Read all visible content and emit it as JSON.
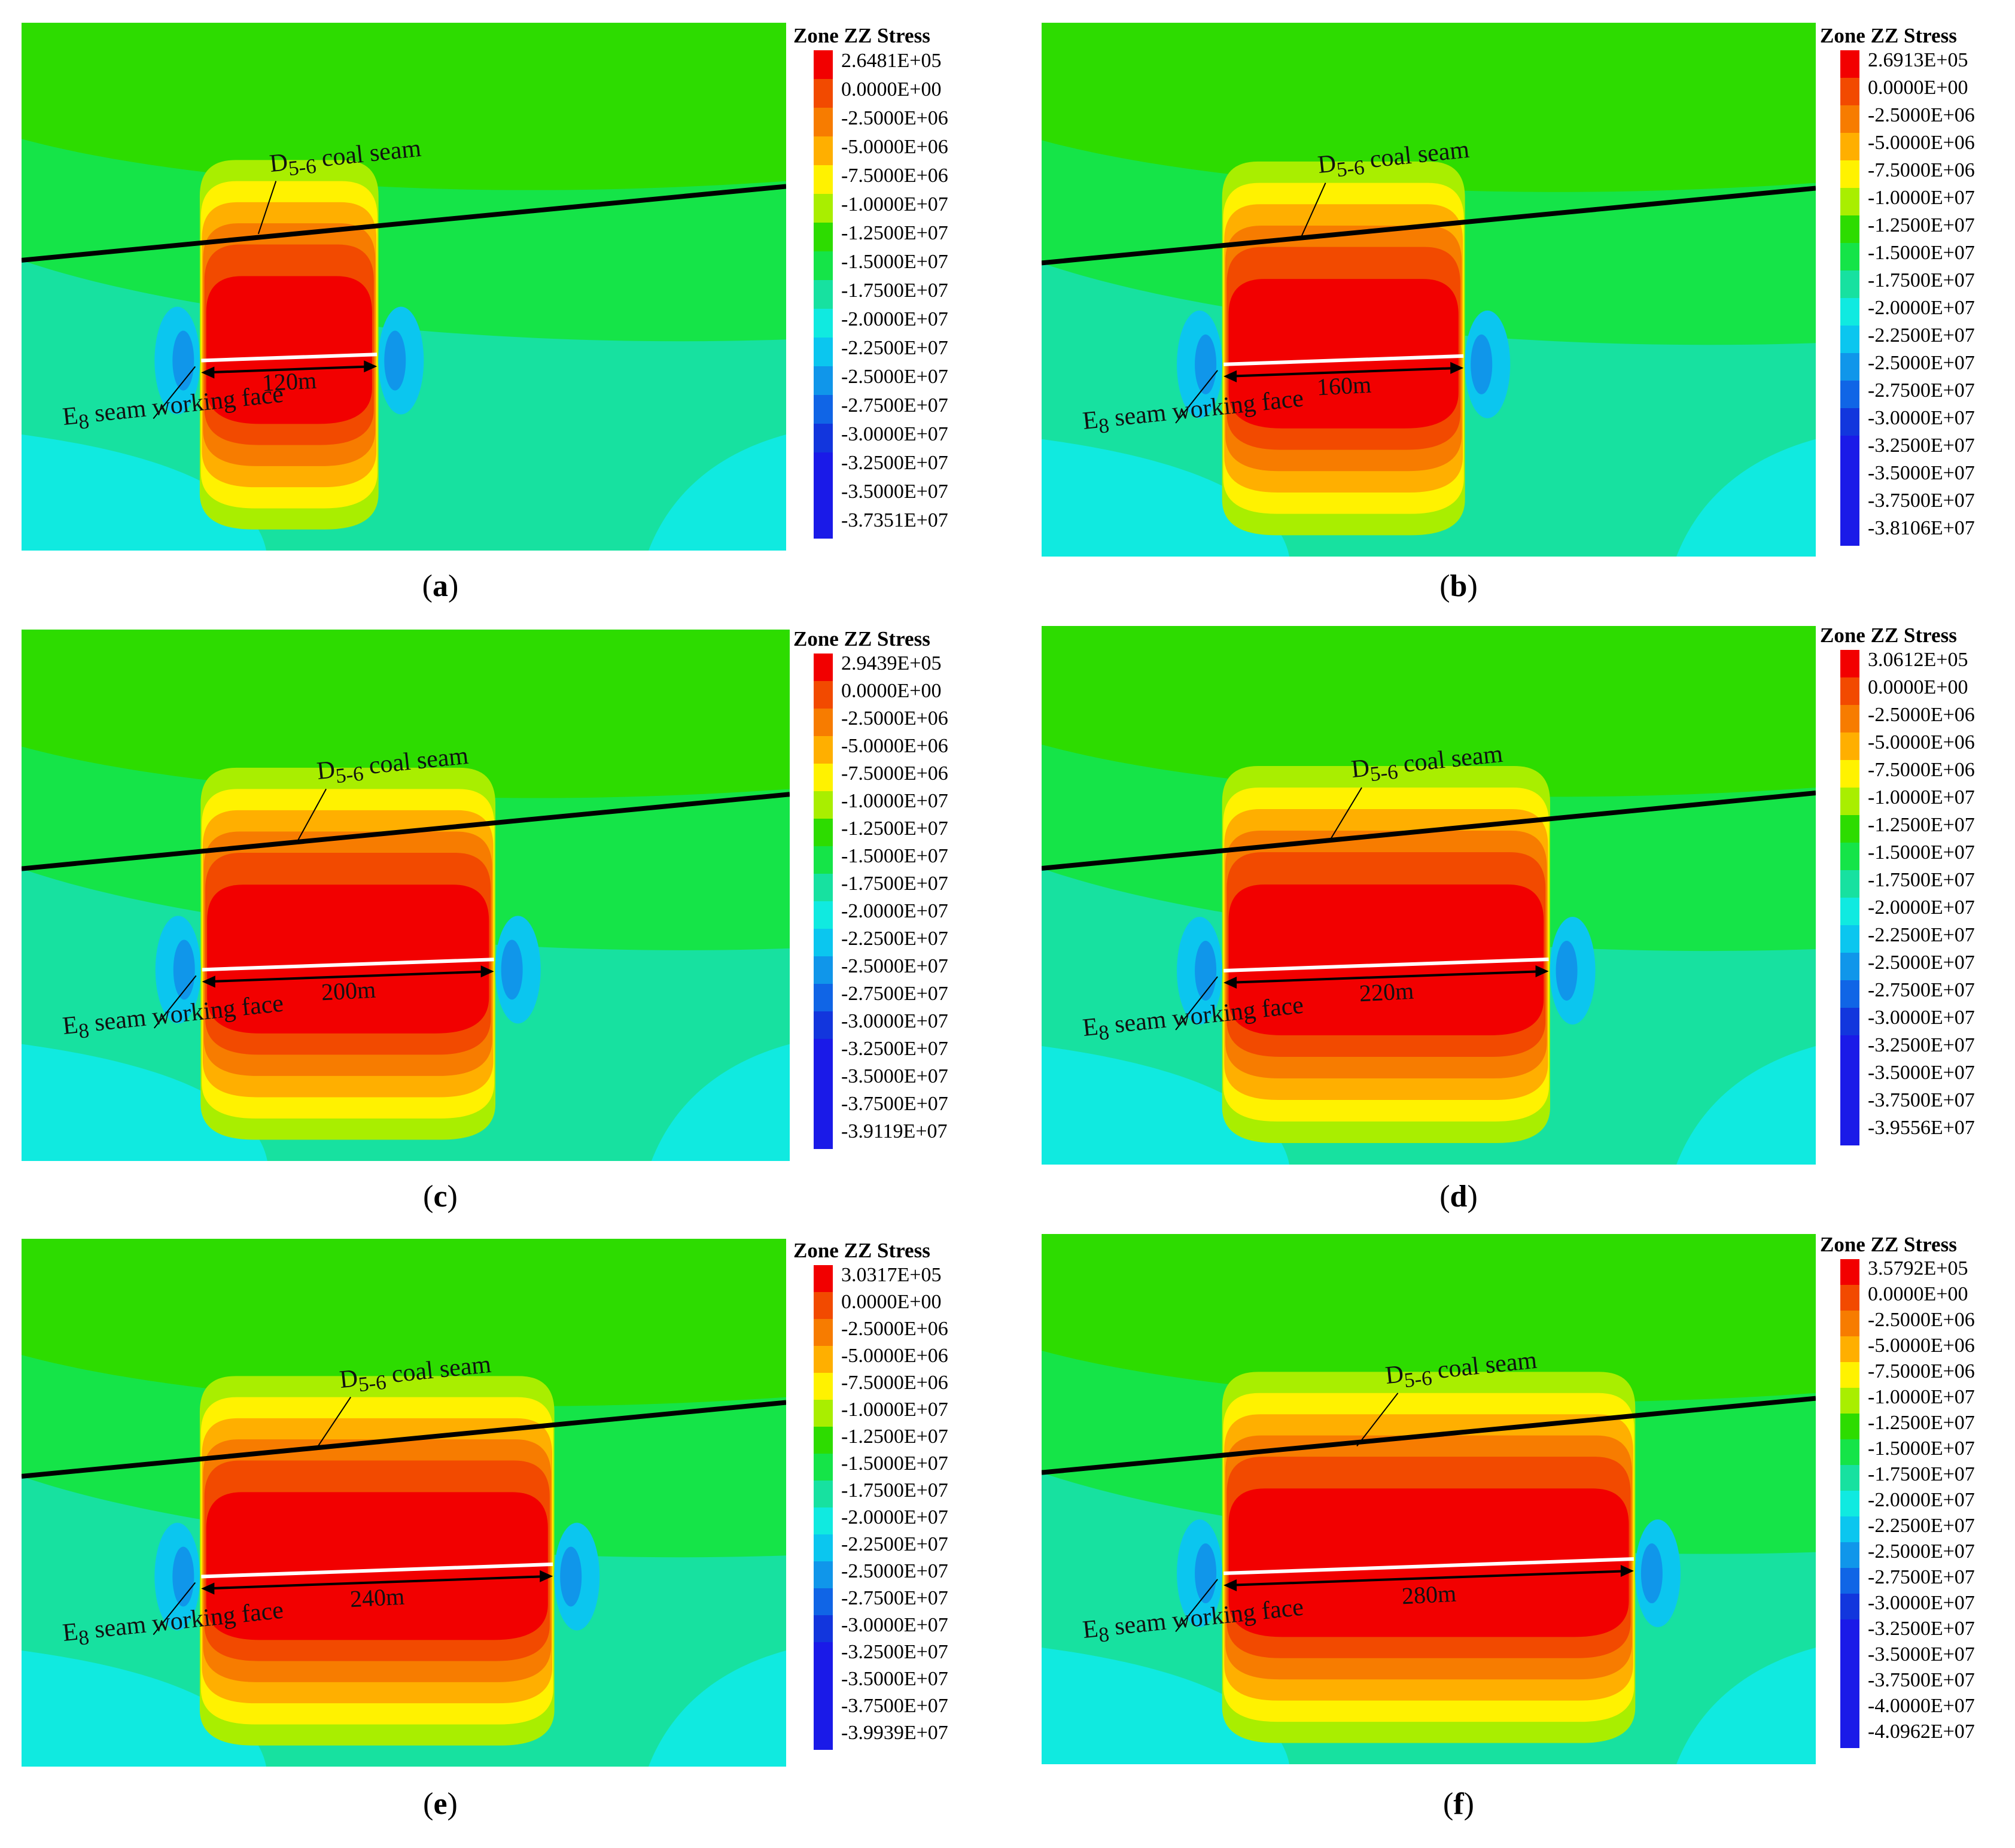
{
  "legend_title": "Zone ZZ Stress",
  "labels": {
    "coal_seam_main": "D",
    "coal_seam_sub": "5-6",
    "coal_seam_suffix": "coal seam",
    "face_main": "E",
    "face_sub": "8",
    "face_suffix": "seam working face"
  },
  "colors": {
    "red": "#f20000",
    "dark_orange": "#f24a00",
    "orange": "#f77c00",
    "orange_yellow": "#ffaf00",
    "yellow": "#fff200",
    "yellow_green": "#a9ee00",
    "green": "#2ddc00",
    "light_green": "#15e448",
    "teal_green": "#17e1a0",
    "cyan": "#10eae0",
    "light_blue": "#0bc6ef",
    "blue": "#1096ea",
    "dark_blue": "#1065e6",
    "deep_blue": "#1236dd",
    "indigo": "#1a1ae8"
  },
  "panels": [
    {
      "caption": "a",
      "span_label": "120m",
      "legend_values": [
        "2.6481E+05",
        "0.0000E+00",
        "-2.5000E+06",
        "-5.0000E+06",
        "-7.5000E+06",
        "-1.0000E+07",
        "-1.2500E+07",
        "-1.5000E+07",
        "-1.7500E+07",
        "-2.0000E+07",
        "-2.2500E+07",
        "-2.5000E+07",
        "-2.7500E+07",
        "-3.0000E+07",
        "-3.2500E+07",
        "-3.5000E+07",
        "-3.7351E+07"
      ]
    },
    {
      "caption": "b",
      "span_label": "160m",
      "legend_values": [
        "2.6913E+05",
        "0.0000E+00",
        "-2.5000E+06",
        "-5.0000E+06",
        "-7.5000E+06",
        "-1.0000E+07",
        "-1.2500E+07",
        "-1.5000E+07",
        "-1.7500E+07",
        "-2.0000E+07",
        "-2.2500E+07",
        "-2.5000E+07",
        "-2.7500E+07",
        "-3.0000E+07",
        "-3.2500E+07",
        "-3.5000E+07",
        "-3.7500E+07",
        "-3.8106E+07"
      ]
    },
    {
      "caption": "c",
      "span_label": "200m",
      "legend_values": [
        "2.9439E+05",
        "0.0000E+00",
        "-2.5000E+06",
        "-5.0000E+06",
        "-7.5000E+06",
        "-1.0000E+07",
        "-1.2500E+07",
        "-1.5000E+07",
        "-1.7500E+07",
        "-2.0000E+07",
        "-2.2500E+07",
        "-2.5000E+07",
        "-2.7500E+07",
        "-3.0000E+07",
        "-3.2500E+07",
        "-3.5000E+07",
        "-3.7500E+07",
        "-3.9119E+07"
      ]
    },
    {
      "caption": "d",
      "span_label": "220m",
      "legend_values": [
        "3.0612E+05",
        "0.0000E+00",
        "-2.5000E+06",
        "-5.0000E+06",
        "-7.5000E+06",
        "-1.0000E+07",
        "-1.2500E+07",
        "-1.5000E+07",
        "-1.7500E+07",
        "-2.0000E+07",
        "-2.2500E+07",
        "-2.5000E+07",
        "-2.7500E+07",
        "-3.0000E+07",
        "-3.2500E+07",
        "-3.5000E+07",
        "-3.7500E+07",
        "-3.9556E+07"
      ]
    },
    {
      "caption": "e",
      "span_label": "240m",
      "legend_values": [
        "3.0317E+05",
        "0.0000E+00",
        "-2.5000E+06",
        "-5.0000E+06",
        "-7.5000E+06",
        "-1.0000E+07",
        "-1.2500E+07",
        "-1.5000E+07",
        "-1.7500E+07",
        "-2.0000E+07",
        "-2.2500E+07",
        "-2.5000E+07",
        "-2.7500E+07",
        "-3.0000E+07",
        "-3.2500E+07",
        "-3.5000E+07",
        "-3.7500E+07",
        "-3.9939E+07"
      ]
    },
    {
      "caption": "f",
      "span_label": "280m",
      "legend_values": [
        "3.5792E+05",
        "0.0000E+00",
        "-2.5000E+06",
        "-5.0000E+06",
        "-7.5000E+06",
        "-1.0000E+07",
        "-1.2500E+07",
        "-1.5000E+07",
        "-1.7500E+07",
        "-2.0000E+07",
        "-2.2500E+07",
        "-2.5000E+07",
        "-2.7500E+07",
        "-3.0000E+07",
        "-3.2500E+07",
        "-3.5000E+07",
        "-3.7500E+07",
        "-4.0000E+07",
        "-4.0962E+07"
      ]
    }
  ]
}
